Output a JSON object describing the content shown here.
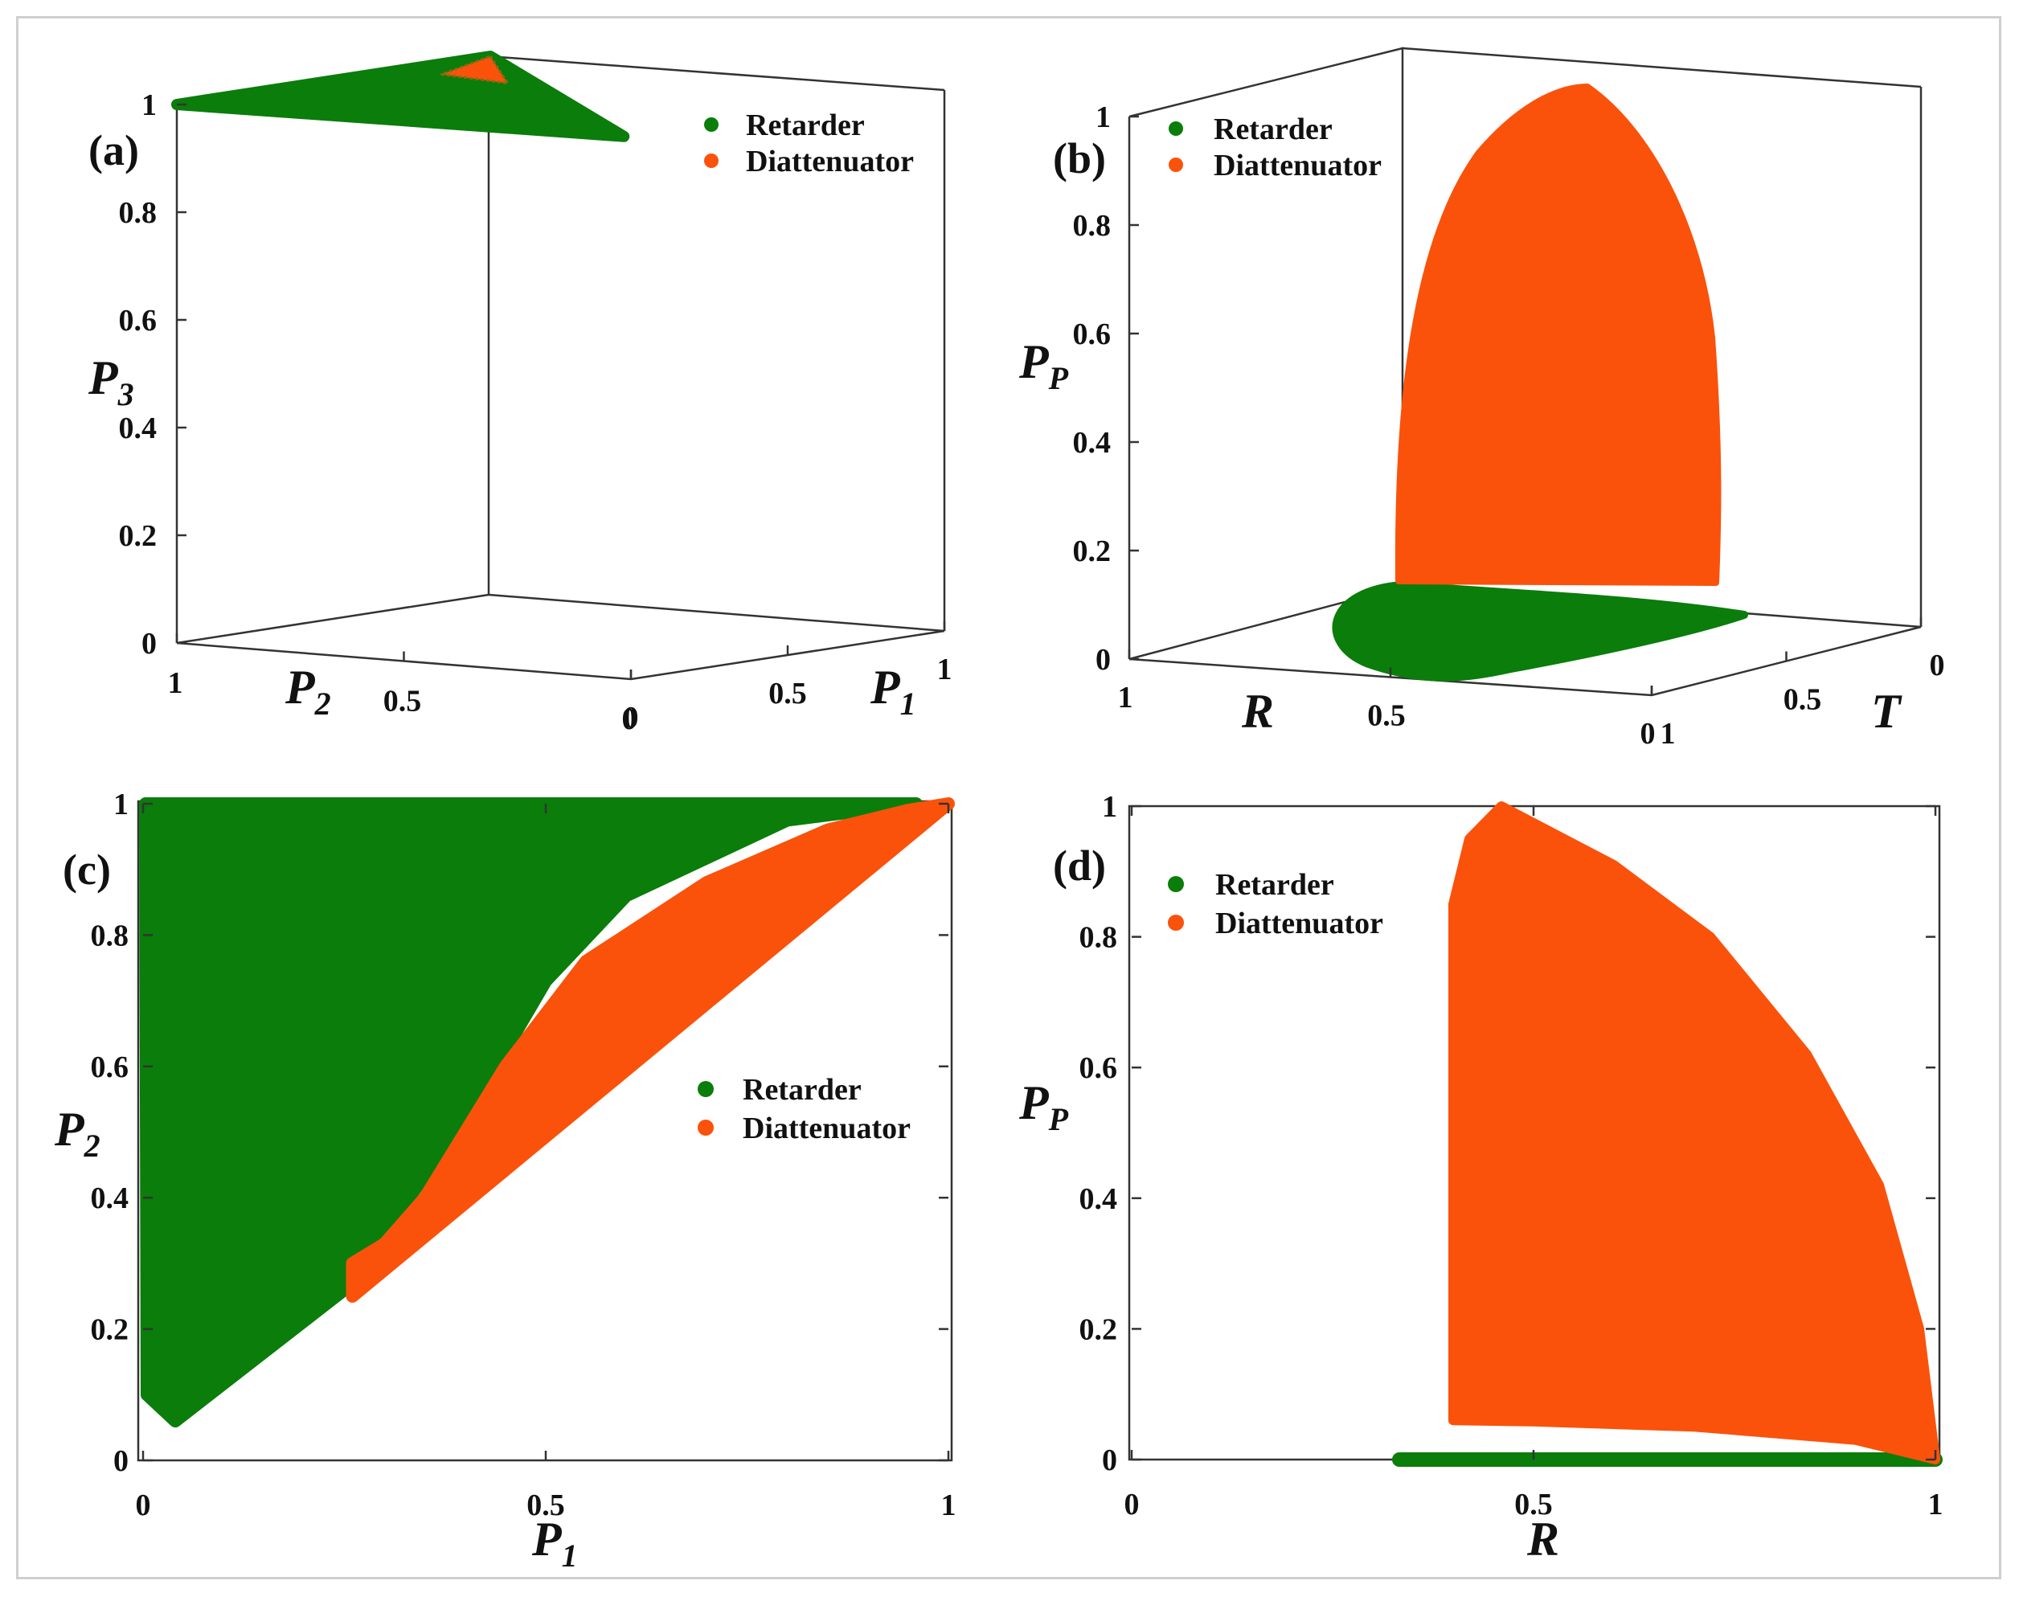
{
  "colors": {
    "retarder": "#0a7d0a",
    "diattenuator": "#fa520b",
    "axis": "#333333"
  },
  "legend": {
    "retarder": "Retarder",
    "diattenuator": "Diattenuator"
  },
  "chart_data": [
    {
      "id": "a",
      "panel_label": "(a)",
      "type": "scatter",
      "projection": "3d",
      "axes": {
        "x": {
          "label": "P",
          "sub": "1",
          "ticks": [
            "0",
            "0.5",
            "1"
          ],
          "range": [
            0,
            1
          ]
        },
        "y": {
          "label": "P",
          "sub": "2",
          "ticks": [
            "1",
            "0.5",
            "0"
          ],
          "range": [
            0,
            1
          ]
        },
        "z": {
          "label": "P",
          "sub": "3",
          "ticks": [
            "0",
            "0.2",
            "0.4",
            "0.6",
            "0.8",
            "1"
          ],
          "range": [
            0,
            1
          ]
        }
      },
      "series": [
        {
          "name": "Retarder",
          "color": "#0a7d0a",
          "region": "triangle at P3 = 1",
          "points": [
            [
              0,
              1,
              1
            ],
            [
              1,
              1,
              1
            ],
            [
              0.05,
              0.05,
              1
            ]
          ]
        },
        {
          "name": "Diattenuator",
          "color": "#fa520b",
          "region": "small sheet near P1 = P2 = 1",
          "points": [
            [
              1,
              1,
              1
            ],
            [
              0.65,
              0.72,
              1
            ],
            [
              0.7,
              0.9,
              1
            ]
          ]
        }
      ],
      "legend_position": "top-right"
    },
    {
      "id": "b",
      "panel_label": "(b)",
      "type": "scatter",
      "projection": "3d",
      "axes": {
        "x": {
          "label": "T",
          "ticks": [
            "1",
            "0.5",
            "0"
          ],
          "range": [
            0,
            1
          ]
        },
        "y": {
          "label": "R",
          "ticks": [
            "1",
            "0.5",
            "0"
          ],
          "range": [
            0,
            1
          ]
        },
        "z": {
          "label": "P",
          "sub": "P",
          "ticks": [
            "0",
            "0.2",
            "0.4",
            "0.6",
            "0.8",
            "1"
          ],
          "range": [
            0,
            1
          ]
        }
      },
      "series": [
        {
          "name": "Retarder",
          "color": "#0a7d0a",
          "region": "lens-shaped patch at P_P = 0"
        },
        {
          "name": "Diattenuator",
          "color": "#fa520b",
          "region": "arch-shaped surface, P_P from about 0.05 to 1"
        }
      ],
      "legend_position": "top-left"
    },
    {
      "id": "c",
      "panel_label": "(c)",
      "type": "scatter",
      "axes": {
        "x": {
          "label": "P",
          "sub": "1",
          "ticks": [
            "0",
            "0.5",
            "1"
          ],
          "range": [
            0,
            1
          ]
        },
        "y": {
          "label": "P",
          "sub": "2",
          "ticks": [
            "0",
            "0.2",
            "0.4",
            "0.6",
            "0.8",
            "1"
          ],
          "range": [
            0,
            1
          ]
        }
      },
      "series": [
        {
          "name": "Retarder",
          "color": "#0a7d0a",
          "boundary": [
            [
              0.003,
              1.0
            ],
            [
              0.96,
              1.0
            ],
            [
              0.8,
              0.975
            ],
            [
              0.6,
              0.86
            ],
            [
              0.5,
              0.73
            ],
            [
              0.4,
              0.52
            ],
            [
              0.33,
              0.4
            ],
            [
              0.25,
              0.26
            ],
            [
              0.04,
              0.06
            ],
            [
              0.005,
              0.1
            ]
          ]
        },
        {
          "name": "Diattenuator",
          "color": "#fa520b",
          "boundary": [
            [
              0.26,
              0.25
            ],
            [
              1.0,
              1.0
            ],
            [
              0.95,
              0.99
            ],
            [
              0.85,
              0.96
            ],
            [
              0.7,
              0.88
            ],
            [
              0.55,
              0.76
            ],
            [
              0.45,
              0.6
            ],
            [
              0.35,
              0.4
            ],
            [
              0.3,
              0.33
            ],
            [
              0.26,
              0.3
            ]
          ]
        }
      ],
      "legend_position": "right"
    },
    {
      "id": "d",
      "panel_label": "(d)",
      "type": "scatter",
      "axes": {
        "x": {
          "label": "R",
          "ticks": [
            "0",
            "0.5",
            "1"
          ],
          "range": [
            0,
            1
          ]
        },
        "y": {
          "label": "P",
          "sub": "P",
          "ticks": [
            "0",
            "0.2",
            "0.4",
            "0.6",
            "0.8",
            "1"
          ],
          "range": [
            0,
            1
          ]
        }
      },
      "series": [
        {
          "name": "Retarder",
          "color": "#0a7d0a",
          "x_range": [
            0.333,
            1.0
          ],
          "y": 0
        },
        {
          "name": "Diattenuator",
          "color": "#fa520b",
          "boundary": [
            [
              0.4,
              0.06
            ],
            [
              0.4,
              0.85
            ],
            [
              0.42,
              0.95
            ],
            [
              0.46,
              1.0
            ],
            [
              0.6,
              0.91
            ],
            [
              0.72,
              0.8
            ],
            [
              0.84,
              0.62
            ],
            [
              0.93,
              0.42
            ],
            [
              0.98,
              0.2
            ],
            [
              1.0,
              0.0
            ],
            [
              0.9,
              0.03
            ],
            [
              0.7,
              0.05
            ],
            [
              0.5,
              0.058
            ]
          ]
        }
      ],
      "legend_position": "top-left"
    }
  ]
}
